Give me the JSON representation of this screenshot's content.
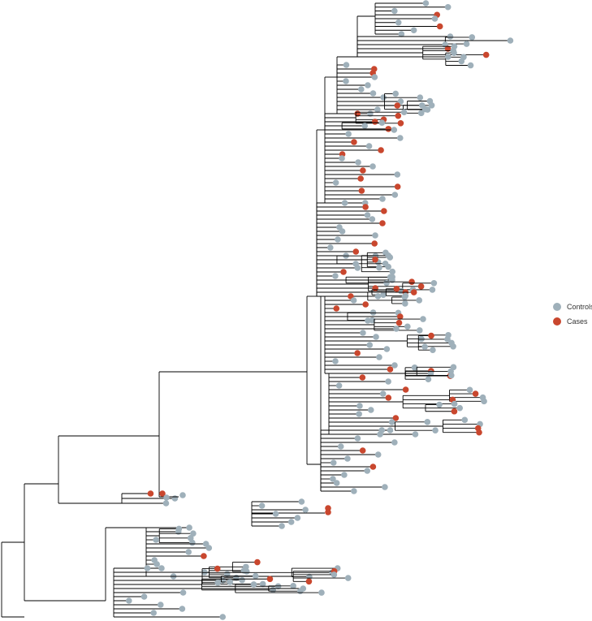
{
  "legend": {
    "controls": {
      "label": "Controls",
      "color": "#9fb0ba"
    },
    "cases": {
      "label": "Cases",
      "color": "#c9472e"
    }
  },
  "branch_color": "#000000"
}
